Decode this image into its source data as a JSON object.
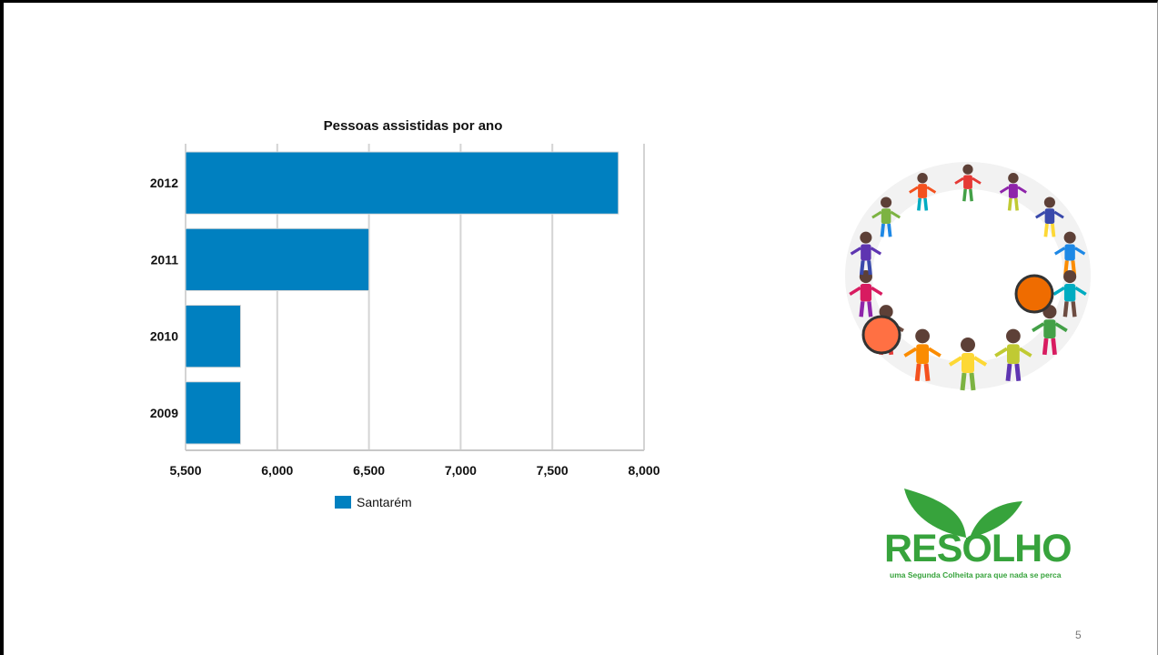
{
  "chart_data": {
    "type": "bar",
    "orientation": "horizontal",
    "title": "Pessoas assistidas por ano",
    "categories": [
      "2012",
      "2011",
      "2010",
      "2009"
    ],
    "series": [
      {
        "name": "Santarém",
        "values": [
          7860,
          6500,
          5800,
          5800
        ],
        "color": "#0080c0"
      }
    ],
    "xlim": [
      5500,
      8000
    ],
    "xticks": [
      5500,
      6000,
      6500,
      7000,
      7500,
      8000
    ],
    "xtick_labels": [
      "5,500",
      "6,000",
      "6,500",
      "7,000",
      "7,500",
      "8,000"
    ],
    "grid": true,
    "legend_position": "bottom"
  },
  "logo": {
    "wordmark": "RESOLHO",
    "tagline": "uma Segunda Colheita para que nada se perca",
    "color": "#37a33c"
  },
  "illustration": {
    "icon": "children-holding-hands-circle-icon"
  },
  "page_number": "5"
}
